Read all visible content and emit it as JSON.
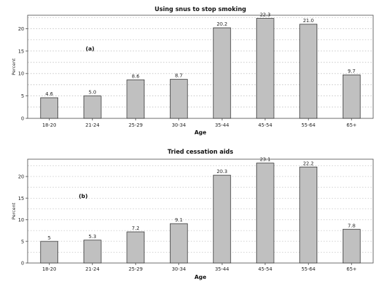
{
  "chart_data": [
    {
      "type": "bar",
      "title": "Using snus to stop smoking",
      "panel_label": "(a)",
      "xlabel": "Age",
      "ylabel": "Percent",
      "categories": [
        "18-20",
        "21-24",
        "25-29",
        "30-34",
        "35-44",
        "45-54",
        "55-64",
        "65+"
      ],
      "values": [
        4.6,
        5.0,
        8.6,
        8.7,
        20.2,
        22.3,
        21.0,
        9.7
      ],
      "value_labels": [
        "4.6",
        "5.0",
        "8.6",
        "8.7",
        "20.2",
        "22.3",
        "21.0",
        "9.7"
      ],
      "ylim": [
        0,
        23
      ],
      "yticks": [
        0,
        5,
        10,
        15,
        20
      ],
      "grid": true,
      "bar_color": "#c0c0c0"
    },
    {
      "type": "bar",
      "title": "Tried cessation aids",
      "panel_label": "(b)",
      "xlabel": "Age",
      "ylabel": "Percent",
      "categories": [
        "18-20",
        "21-24",
        "25-29",
        "30-34",
        "35-44",
        "45-54",
        "55-64",
        "65+"
      ],
      "values": [
        5,
        5.3,
        7.2,
        9.1,
        20.3,
        23.1,
        22.2,
        7.8
      ],
      "value_labels": [
        "5",
        "5.3",
        "7.2",
        "9.1",
        "20.3",
        "23.1",
        "22.2",
        "7.8"
      ],
      "ylim": [
        0,
        24
      ],
      "yticks": [
        0,
        5,
        10,
        15,
        20
      ],
      "grid": true,
      "bar_color": "#c0c0c0"
    }
  ]
}
